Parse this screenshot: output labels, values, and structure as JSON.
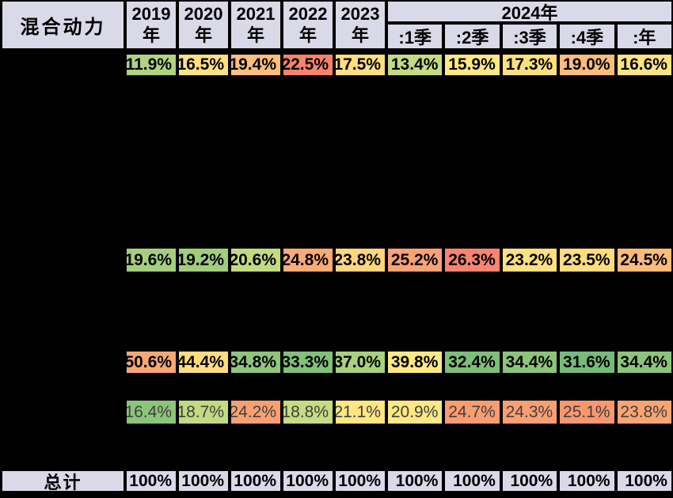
{
  "table": {
    "corner_label": "混合动力",
    "header_bg": "#d9d9e8",
    "year_headers": [
      "2019年",
      "2020年",
      "2021年",
      "2022年",
      "2023年"
    ],
    "group_header": "2024年",
    "quarter_headers": [
      ":1季",
      ":2季",
      ":3季",
      ":4季",
      ":年"
    ],
    "rows": [
      {
        "label": "",
        "bold": true,
        "text_color": "#000000",
        "cells": [
          {
            "v": "11.9%",
            "bg": "#aed47e"
          },
          {
            "v": "16.5%",
            "bg": "#ffe182"
          },
          {
            "v": "19.4%",
            "bg": "#fcbe7b"
          },
          {
            "v": "22.5%",
            "bg": "#f8836c"
          },
          {
            "v": "17.5%",
            "bg": "#ffdf80"
          },
          {
            "v": "13.4%",
            "bg": "#c6db81"
          },
          {
            "v": "15.9%",
            "bg": "#ffe884"
          },
          {
            "v": "17.3%",
            "bg": "#ffe07f"
          },
          {
            "v": "19.0%",
            "bg": "#fcbc7a"
          },
          {
            "v": "16.6%",
            "bg": "#ffe382"
          }
        ]
      },
      {
        "label": "",
        "bold": true,
        "text_color": "#000000",
        "cells": [
          {
            "v": "19.6%",
            "bg": "#a6cf7d"
          },
          {
            "v": "19.2%",
            "bg": "#a2cd7c"
          },
          {
            "v": "20.6%",
            "bg": "#c3da80"
          },
          {
            "v": "24.8%",
            "bg": "#fcab76"
          },
          {
            "v": "23.8%",
            "bg": "#ffd67d"
          },
          {
            "v": "25.2%",
            "bg": "#fba275"
          },
          {
            "v": "26.3%",
            "bg": "#f9846f"
          },
          {
            "v": "23.2%",
            "bg": "#ffe07f"
          },
          {
            "v": "23.5%",
            "bg": "#ffdd7e"
          },
          {
            "v": "24.5%",
            "bg": "#fcbb77"
          }
        ]
      },
      {
        "label": "",
        "bold": true,
        "text_color": "#000000",
        "cells": [
          {
            "v": "50.6%",
            "bg": "#faa873"
          },
          {
            "v": "44.4%",
            "bg": "#ffdc7e"
          },
          {
            "v": "34.8%",
            "bg": "#90c57b"
          },
          {
            "v": "33.3%",
            "bg": "#83c07a"
          },
          {
            "v": "37.0%",
            "bg": "#aad07e"
          },
          {
            "v": "39.8%",
            "bg": "#ffe884"
          },
          {
            "v": "32.4%",
            "bg": "#7ebe79"
          },
          {
            "v": "34.4%",
            "bg": "#8dc47b"
          },
          {
            "v": "31.6%",
            "bg": "#76bb79"
          },
          {
            "v": "34.4%",
            "bg": "#8dc47b"
          }
        ]
      },
      {
        "label": "",
        "bold": false,
        "text_color": "#404040",
        "cells": [
          {
            "v": "16.4%",
            "bg": "#8cc47b"
          },
          {
            "v": "18.7%",
            "bg": "#c2da80"
          },
          {
            "v": "24.2%",
            "bg": "#f9a072"
          },
          {
            "v": "18.8%",
            "bg": "#c7dc81"
          },
          {
            "v": "21.1%",
            "bg": "#ffe682"
          },
          {
            "v": "20.9%",
            "bg": "#ffe883"
          },
          {
            "v": "24.7%",
            "bg": "#f99d71"
          },
          {
            "v": "24.3%",
            "bg": "#fa9f72"
          },
          {
            "v": "25.1%",
            "bg": "#f9976f"
          },
          {
            "v": "23.8%",
            "bg": "#faa473"
          }
        ]
      }
    ],
    "total": {
      "label": "总计",
      "values": [
        "100%",
        "100%",
        "100%",
        "100%",
        "100%",
        "100%",
        "100%",
        "100%",
        "100%",
        "100%"
      ]
    }
  },
  "chart_data": {
    "type": "table",
    "title": "混合动力",
    "unit": "%",
    "columns": [
      "2019年",
      "2020年",
      "2021年",
      "2022年",
      "2023年",
      "2024年:1季",
      "2024年:2季",
      "2024年:3季",
      "2024年:4季",
      "2024年:年"
    ],
    "rows": [
      {
        "label": "",
        "values": [
          11.9,
          16.5,
          19.4,
          22.5,
          17.5,
          13.4,
          15.9,
          17.3,
          19.0,
          16.6
        ]
      },
      {
        "label": "",
        "values": [
          19.6,
          19.2,
          20.6,
          24.8,
          23.8,
          25.2,
          26.3,
          23.2,
          23.5,
          24.5
        ]
      },
      {
        "label": "",
        "values": [
          50.6,
          44.4,
          34.8,
          33.3,
          37.0,
          39.8,
          32.4,
          34.4,
          31.6,
          34.4
        ]
      },
      {
        "label": "",
        "values": [
          16.4,
          18.7,
          24.2,
          18.8,
          21.1,
          20.9,
          24.7,
          24.3,
          25.1,
          23.8
        ]
      },
      {
        "label": "总计",
        "values": [
          100,
          100,
          100,
          100,
          100,
          100,
          100,
          100,
          100,
          100
        ]
      }
    ],
    "layout_hints": {
      "heatmap": "red-yellow-green scale per row",
      "redacted": "row labels and several full rows are blacked out"
    }
  }
}
